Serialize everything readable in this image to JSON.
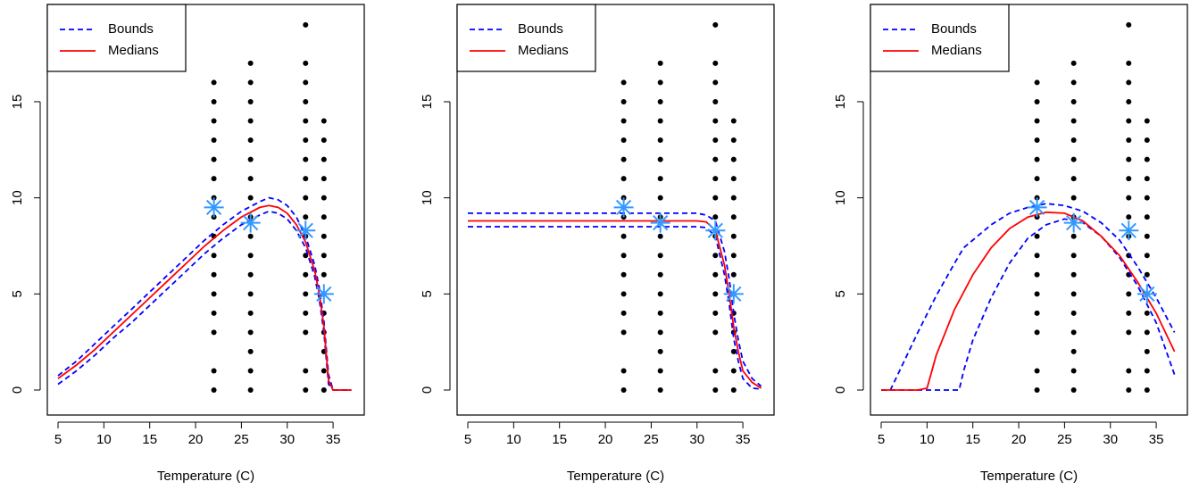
{
  "chart_data": [
    {
      "type": "scatter",
      "x_label": "Temperature (C)",
      "xlim": [
        3.83,
        38.4
      ],
      "ylim": [
        -1.3,
        20.06
      ],
      "xticks": [
        5,
        10,
        15,
        20,
        25,
        30,
        35
      ],
      "yticks": [
        0,
        5,
        10,
        15
      ],
      "legend": "top-left",
      "columns": [
        {
          "x": 22,
          "y": [
            0,
            1,
            3,
            4,
            5,
            6,
            7,
            8,
            9,
            10,
            11,
            12,
            13,
            14,
            15,
            16
          ]
        },
        {
          "x": 26,
          "y": [
            0,
            1,
            2,
            3,
            4,
            5,
            6,
            7,
            8,
            9,
            10,
            11,
            12,
            13,
            14,
            15,
            16,
            17
          ]
        },
        {
          "x": 32,
          "y": [
            0,
            1,
            3,
            4,
            5,
            6,
            7,
            8,
            9,
            10,
            11,
            12,
            13,
            14,
            15,
            16,
            17,
            19
          ]
        },
        {
          "x": 34,
          "y": [
            0,
            1,
            2,
            3,
            4,
            5,
            6,
            7,
            8,
            9,
            10,
            11,
            12,
            13,
            14
          ]
        }
      ],
      "markers": {
        "color": "#3399ff",
        "x": [
          22,
          26,
          32,
          34
        ],
        "y": [
          9.5,
          8.7,
          8.3,
          5.0
        ]
      },
      "series": [
        {
          "name": "Bounds",
          "color": "#0000ff",
          "dash": true,
          "lines": [
            {
              "x": [
                5,
                7,
                9,
                11,
                13,
                15,
                17,
                19,
                21,
                23,
                25,
                27,
                28,
                29,
                30,
                31,
                32,
                33,
                33.5,
                34,
                34.5,
                35,
                36,
                37
              ],
              "values": [
                0.75,
                1.5,
                2.4,
                3.3,
                4.2,
                5.1,
                6.0,
                6.9,
                7.8,
                8.6,
                9.3,
                9.8,
                10.0,
                9.9,
                9.6,
                9.0,
                8.0,
                6.5,
                5.3,
                3.6,
                0.8,
                0,
                0,
                0
              ]
            },
            {
              "x": [
                5,
                7,
                9,
                11,
                13,
                15,
                17,
                19,
                21,
                23,
                25,
                27,
                28,
                29,
                30,
                31,
                32,
                33,
                33.5,
                34,
                34.5,
                35,
                36,
                37
              ],
              "values": [
                0.3,
                1.0,
                1.8,
                2.7,
                3.5,
                4.4,
                5.3,
                6.2,
                7.1,
                7.9,
                8.6,
                9.1,
                9.3,
                9.2,
                8.9,
                8.3,
                7.4,
                5.9,
                4.7,
                3.0,
                0.3,
                0,
                0,
                0
              ]
            }
          ]
        },
        {
          "name": "Medians",
          "color": "#ff0000",
          "dash": false,
          "lines": [
            {
              "x": [
                5,
                7,
                9,
                11,
                13,
                15,
                17,
                19,
                21,
                23,
                25,
                27,
                28,
                29,
                30,
                31,
                32,
                33,
                33.5,
                34,
                34.5,
                35,
                36,
                37
              ],
              "values": [
                0.6,
                1.3,
                2.1,
                3.0,
                3.9,
                4.8,
                5.7,
                6.6,
                7.5,
                8.3,
                9.0,
                9.5,
                9.6,
                9.5,
                9.2,
                8.6,
                7.7,
                6.2,
                5.0,
                3.3,
                0.5,
                0,
                0,
                0
              ]
            }
          ]
        }
      ]
    },
    {
      "type": "scatter",
      "x_label": "Temperature (C)",
      "xlim": [
        3.83,
        38.4
      ],
      "ylim": [
        -1.3,
        20.06
      ],
      "xticks": [
        5,
        10,
        15,
        20,
        25,
        30,
        35
      ],
      "yticks": [
        0,
        5,
        10,
        15
      ],
      "legend": "top-left",
      "columns": [
        {
          "x": 22,
          "y": [
            0,
            1,
            3,
            4,
            5,
            6,
            7,
            8,
            9,
            10,
            11,
            12,
            13,
            14,
            15,
            16
          ]
        },
        {
          "x": 26,
          "y": [
            0,
            1,
            2,
            3,
            4,
            5,
            6,
            7,
            8,
            9,
            10,
            11,
            12,
            13,
            14,
            15,
            16,
            17
          ]
        },
        {
          "x": 32,
          "y": [
            0,
            1,
            3,
            4,
            5,
            6,
            7,
            8,
            9,
            10,
            11,
            12,
            13,
            14,
            15,
            16,
            17,
            19
          ]
        },
        {
          "x": 34,
          "y": [
            0,
            1,
            2,
            3,
            4,
            5,
            6,
            7,
            8,
            9,
            10,
            11,
            12,
            13,
            14
          ]
        }
      ],
      "markers": {
        "color": "#3399ff",
        "x": [
          22,
          26,
          32,
          34
        ],
        "y": [
          9.5,
          8.7,
          8.3,
          5.0
        ]
      },
      "series": [
        {
          "name": "Bounds",
          "color": "#0000ff",
          "dash": true,
          "lines": [
            {
              "x": [
                5,
                15,
                25,
                30,
                31,
                32,
                33,
                33.5,
                34,
                34.5,
                35,
                36,
                37
              ],
              "values": [
                9.2,
                9.2,
                9.2,
                9.2,
                9.1,
                8.8,
                7.2,
                5.8,
                4.0,
                2.6,
                1.5,
                0.6,
                0.2
              ]
            },
            {
              "x": [
                5,
                15,
                25,
                30,
                31,
                32,
                33,
                33.5,
                34,
                34.5,
                35,
                36,
                37
              ],
              "values": [
                8.5,
                8.5,
                8.5,
                8.5,
                8.45,
                8.0,
                6.0,
                4.5,
                2.7,
                1.5,
                0.6,
                0.1,
                0.05
              ]
            }
          ]
        },
        {
          "name": "Medians",
          "color": "#ff0000",
          "dash": false,
          "lines": [
            {
              "x": [
                5,
                15,
                25,
                30,
                31,
                32,
                33,
                33.5,
                34,
                34.5,
                35,
                36,
                37
              ],
              "values": [
                8.8,
                8.8,
                8.8,
                8.8,
                8.75,
                8.3,
                6.5,
                5.0,
                3.3,
                2.0,
                1.0,
                0.4,
                0.1
              ]
            }
          ]
        }
      ]
    },
    {
      "type": "scatter",
      "x_label": "Temperature (C)",
      "xlim": [
        3.83,
        38.4
      ],
      "ylim": [
        -1.3,
        20.06
      ],
      "xticks": [
        5,
        10,
        15,
        20,
        25,
        30,
        35
      ],
      "yticks": [
        0,
        5,
        10,
        15
      ],
      "legend": "top-left",
      "columns": [
        {
          "x": 22,
          "y": [
            0,
            1,
            3,
            4,
            5,
            6,
            7,
            8,
            9,
            10,
            11,
            12,
            13,
            14,
            15,
            16
          ]
        },
        {
          "x": 26,
          "y": [
            0,
            1,
            2,
            3,
            4,
            5,
            6,
            7,
            8,
            9,
            10,
            11,
            12,
            13,
            14,
            15,
            16,
            17
          ]
        },
        {
          "x": 32,
          "y": [
            0,
            1,
            3,
            4,
            5,
            6,
            7,
            8,
            9,
            10,
            11,
            12,
            13,
            14,
            15,
            16,
            17,
            19
          ]
        },
        {
          "x": 34,
          "y": [
            0,
            1,
            2,
            3,
            4,
            5,
            6,
            7,
            8,
            9,
            10,
            11,
            12,
            13,
            14
          ]
        }
      ],
      "markers": {
        "color": "#3399ff",
        "x": [
          22,
          26,
          32,
          34
        ],
        "y": [
          9.5,
          8.7,
          8.3,
          5.0
        ]
      },
      "series": [
        {
          "name": "Bounds",
          "color": "#0000ff",
          "dash": true,
          "lines": [
            {
              "x": [
                5,
                6,
                7,
                9,
                11,
                13,
                14,
                15,
                17,
                19,
                21,
                23,
                25,
                27,
                29,
                31,
                33,
                35,
                37
              ],
              "values": [
                0,
                0,
                1.0,
                3.0,
                4.9,
                6.6,
                7.4,
                7.8,
                8.6,
                9.2,
                9.5,
                9.7,
                9.6,
                9.3,
                8.7,
                7.8,
                6.4,
                4.8,
                3.0
              ]
            },
            {
              "x": [
                5,
                13.5,
                14,
                15,
                17,
                19,
                21,
                23,
                25,
                27,
                29,
                31,
                33,
                35,
                37
              ],
              "values": [
                0,
                0,
                1.0,
                2.6,
                4.8,
                6.6,
                7.9,
                8.6,
                8.9,
                8.7,
                8.0,
                6.9,
                5.4,
                3.5,
                0.8
              ]
            }
          ]
        },
        {
          "name": "Medians",
          "color": "#ff0000",
          "dash": false,
          "lines": [
            {
              "x": [
                5,
                7,
                9,
                10,
                11,
                13,
                15,
                17,
                19,
                21,
                23,
                25,
                27,
                29,
                31,
                33,
                35,
                37
              ],
              "values": [
                0,
                0,
                0,
                0.1,
                1.8,
                4.2,
                6.0,
                7.4,
                8.4,
                9.0,
                9.25,
                9.2,
                8.8,
                8.0,
                7.0,
                5.6,
                4.0,
                2.0
              ]
            }
          ]
        }
      ]
    }
  ]
}
